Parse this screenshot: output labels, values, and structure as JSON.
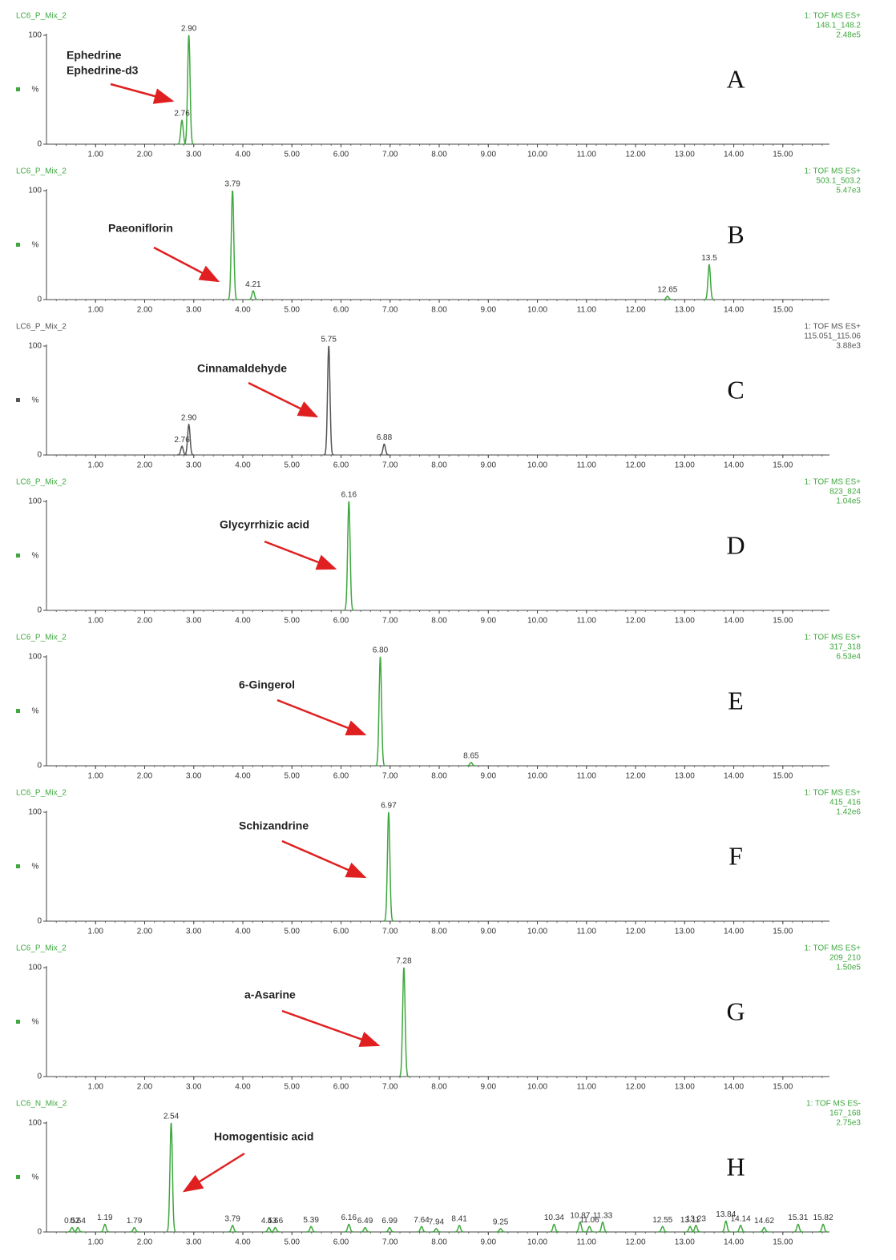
{
  "chart_data": [
    {
      "type": "chromatogram",
      "panel": "A",
      "title": "LC6_P_Mix_2",
      "header": [
        "1: TOF MS ES+",
        "148.1_148.2",
        "2.48e5"
      ],
      "annotation": [
        "Ephedrine",
        "Ephedrine-d3"
      ],
      "color": "#3fa83f",
      "peaks": {
        "x": [
          2.9,
          2.76
        ],
        "x_labels": [
          "2.90",
          "2.76"
        ],
        "values": [
          100,
          22
        ]
      },
      "xlim": [
        0,
        15.95
      ],
      "ylim": [
        0,
        100
      ],
      "yticks": [
        0,
        100
      ],
      "ylabel": "%",
      "xticks": [
        {
          "value": 1,
          "label": "1.00"
        },
        {
          "value": 2,
          "label": "2.00"
        },
        {
          "value": 3,
          "label": "3.00"
        },
        {
          "value": 4,
          "label": "4.00"
        },
        {
          "value": 5,
          "label": "5.00"
        },
        {
          "value": 6,
          "label": "6.00"
        },
        {
          "value": 7,
          "label": "7.00"
        },
        {
          "value": 8,
          "label": "8.00"
        },
        {
          "value": 9,
          "label": "9.00"
        },
        {
          "value": 10,
          "label": "10.00"
        },
        {
          "value": 11,
          "label": "11.00"
        },
        {
          "value": 12,
          "label": "12.00"
        },
        {
          "value": 13,
          "label": "13.00"
        },
        {
          "value": 14,
          "label": "14.00"
        },
        {
          "value": 15,
          "label": "15.00"
        }
      ]
    },
    {
      "type": "chromatogram",
      "panel": "B",
      "title": "LC6_P_Mix_2",
      "header": [
        "1: TOF MS ES+",
        "503.1_503.2",
        "5.47e3"
      ],
      "annotation": [
        "Paeoniflorin"
      ],
      "color": "#3fa83f",
      "peaks": {
        "x": [
          3.79,
          4.21,
          12.65,
          13.5
        ],
        "x_labels": [
          "3.79",
          "4.21",
          "12.65",
          "13.5"
        ],
        "values": [
          100,
          8,
          3,
          32
        ]
      },
      "xlim": [
        0,
        15.95
      ],
      "ylim": [
        0,
        100
      ],
      "yticks": [
        0,
        100
      ],
      "ylabel": "%",
      "xticks": [
        {
          "value": 1,
          "label": "1.00"
        },
        {
          "value": 2,
          "label": "2.00"
        },
        {
          "value": 3,
          "label": "3.00"
        },
        {
          "value": 4,
          "label": "4.00"
        },
        {
          "value": 5,
          "label": "5.00"
        },
        {
          "value": 6,
          "label": "6.00"
        },
        {
          "value": 7,
          "label": "7.00"
        },
        {
          "value": 8,
          "label": "8.00"
        },
        {
          "value": 9,
          "label": "9.00"
        },
        {
          "value": 10,
          "label": "10.00"
        },
        {
          "value": 11,
          "label": "11.00"
        },
        {
          "value": 12,
          "label": "12.00"
        },
        {
          "value": 13,
          "label": "13.00"
        },
        {
          "value": 14,
          "label": "14.00"
        },
        {
          "value": 15,
          "label": "15.00"
        }
      ]
    },
    {
      "type": "chromatogram",
      "panel": "C",
      "title": "LC6_P_Mix_2",
      "header": [
        "1: TOF MS ES+",
        "115.051_115.06",
        "3.88e3"
      ],
      "annotation": [
        "Cinnamaldehyde"
      ],
      "color": "#555555",
      "peaks": {
        "x": [
          2.76,
          2.9,
          5.75,
          6.88
        ],
        "x_labels": [
          "2.76",
          "2.90",
          "5.75",
          "6.88"
        ],
        "values": [
          8,
          28,
          100,
          10
        ]
      },
      "xlim": [
        0,
        15.95
      ],
      "ylim": [
        0,
        100
      ],
      "yticks": [
        0,
        100
      ],
      "ylabel": "%",
      "xticks": [
        {
          "value": 1,
          "label": "1.00"
        },
        {
          "value": 2,
          "label": "2.00"
        },
        {
          "value": 3,
          "label": "3.00"
        },
        {
          "value": 4,
          "label": "4.00"
        },
        {
          "value": 5,
          "label": "5.00"
        },
        {
          "value": 6,
          "label": "6.00"
        },
        {
          "value": 7,
          "label": "7.00"
        },
        {
          "value": 8,
          "label": "8.00"
        },
        {
          "value": 9,
          "label": "9.00"
        },
        {
          "value": 10,
          "label": "10.00"
        },
        {
          "value": 11,
          "label": "11.00"
        },
        {
          "value": 12,
          "label": "12.00"
        },
        {
          "value": 13,
          "label": "13.00"
        },
        {
          "value": 14,
          "label": "14.00"
        },
        {
          "value": 15,
          "label": "15.00"
        }
      ]
    },
    {
      "type": "chromatogram",
      "panel": "D",
      "title": "LC6_P_Mix_2",
      "header": [
        "1: TOF MS ES+",
        "823_824",
        "1.04e5"
      ],
      "annotation": [
        "Glycyrrhizic acid"
      ],
      "color": "#3fa83f",
      "peaks": {
        "x": [
          6.16
        ],
        "x_labels": [
          "6.16"
        ],
        "values": [
          100
        ]
      },
      "xlim": [
        0,
        15.95
      ],
      "ylim": [
        0,
        100
      ],
      "yticks": [
        0,
        100
      ],
      "ylabel": "%",
      "xticks": [
        {
          "value": 1,
          "label": "1.00"
        },
        {
          "value": 2,
          "label": "2.00"
        },
        {
          "value": 3,
          "label": "3.00"
        },
        {
          "value": 4,
          "label": "4.00"
        },
        {
          "value": 5,
          "label": "5.00"
        },
        {
          "value": 6,
          "label": "6.00"
        },
        {
          "value": 7,
          "label": "7.00"
        },
        {
          "value": 8,
          "label": "8.00"
        },
        {
          "value": 9,
          "label": "9.00"
        },
        {
          "value": 10,
          "label": "10.00"
        },
        {
          "value": 11,
          "label": "11.00"
        },
        {
          "value": 12,
          "label": "12.00"
        },
        {
          "value": 13,
          "label": "13.00"
        },
        {
          "value": 14,
          "label": "14.00"
        },
        {
          "value": 15,
          "label": "15.00"
        }
      ]
    },
    {
      "type": "chromatogram",
      "panel": "E",
      "title": "LC6_P_Mix_2",
      "header": [
        "1: TOF MS ES+",
        "317_318",
        "6.53e4"
      ],
      "annotation": [
        "6-Gingerol"
      ],
      "color": "#3fa83f",
      "peaks": {
        "x": [
          6.8,
          8.65
        ],
        "x_labels": [
          "6.80",
          "8.65"
        ],
        "values": [
          100,
          3
        ]
      },
      "xlim": [
        0,
        15.95
      ],
      "ylim": [
        0,
        100
      ],
      "yticks": [
        0,
        100
      ],
      "ylabel": "%",
      "xticks": [
        {
          "value": 1,
          "label": "1.00"
        },
        {
          "value": 2,
          "label": "2.00"
        },
        {
          "value": 3,
          "label": "3.00"
        },
        {
          "value": 4,
          "label": "4.00"
        },
        {
          "value": 5,
          "label": "5.00"
        },
        {
          "value": 6,
          "label": "6.00"
        },
        {
          "value": 7,
          "label": "7.00"
        },
        {
          "value": 8,
          "label": "8.00"
        },
        {
          "value": 9,
          "label": "9.00"
        },
        {
          "value": 10,
          "label": "10.00"
        },
        {
          "value": 11,
          "label": "11.00"
        },
        {
          "value": 12,
          "label": "12.00"
        },
        {
          "value": 13,
          "label": "13.00"
        },
        {
          "value": 14,
          "label": "14.00"
        },
        {
          "value": 15,
          "label": "15.00"
        }
      ]
    },
    {
      "type": "chromatogram",
      "panel": "F",
      "title": "LC6_P_Mix_2",
      "header": [
        "1: TOF MS ES+",
        "415_416",
        "1.42e6"
      ],
      "annotation": [
        "Schizandrine"
      ],
      "color": "#3fa83f",
      "peaks": {
        "x": [
          6.97
        ],
        "x_labels": [
          "6.97"
        ],
        "values": [
          100
        ]
      },
      "xlim": [
        0,
        15.95
      ],
      "ylim": [
        0,
        100
      ],
      "yticks": [
        0,
        100
      ],
      "ylabel": "%",
      "xticks": [
        {
          "value": 1,
          "label": "1.00"
        },
        {
          "value": 2,
          "label": "2.00"
        },
        {
          "value": 3,
          "label": "3.00"
        },
        {
          "value": 4,
          "label": "4.00"
        },
        {
          "value": 5,
          "label": "5.00"
        },
        {
          "value": 6,
          "label": "6.00"
        },
        {
          "value": 7,
          "label": "7.00"
        },
        {
          "value": 8,
          "label": "8.00"
        },
        {
          "value": 9,
          "label": "9.00"
        },
        {
          "value": 10,
          "label": "10.00"
        },
        {
          "value": 11,
          "label": "11.00"
        },
        {
          "value": 12,
          "label": "12.00"
        },
        {
          "value": 13,
          "label": "13.00"
        },
        {
          "value": 14,
          "label": "14.00"
        },
        {
          "value": 15,
          "label": "15.00"
        }
      ]
    },
    {
      "type": "chromatogram",
      "panel": "G",
      "title": "LC6_P_Mix_2",
      "header": [
        "1: TOF MS ES+",
        "209_210",
        "1.50e5"
      ],
      "annotation": [
        "a-Asarine"
      ],
      "color": "#3fa83f",
      "peaks": {
        "x": [
          7.28
        ],
        "x_labels": [
          "7.28"
        ],
        "values": [
          100
        ]
      },
      "xlim": [
        0,
        15.95
      ],
      "ylim": [
        0,
        100
      ],
      "yticks": [
        0,
        100
      ],
      "ylabel": "%",
      "xticks": [
        {
          "value": 1,
          "label": "1.00"
        },
        {
          "value": 2,
          "label": "2.00"
        },
        {
          "value": 3,
          "label": "3.00"
        },
        {
          "value": 4,
          "label": "4.00"
        },
        {
          "value": 5,
          "label": "5.00"
        },
        {
          "value": 6,
          "label": "6.00"
        },
        {
          "value": 7,
          "label": "7.00"
        },
        {
          "value": 8,
          "label": "8.00"
        },
        {
          "value": 9,
          "label": "9.00"
        },
        {
          "value": 10,
          "label": "10.00"
        },
        {
          "value": 11,
          "label": "11.00"
        },
        {
          "value": 12,
          "label": "12.00"
        },
        {
          "value": 13,
          "label": "13.00"
        },
        {
          "value": 14,
          "label": "14.00"
        },
        {
          "value": 15,
          "label": "15.00"
        }
      ]
    },
    {
      "type": "chromatogram",
      "panel": "H",
      "title": "LC6_N_Mix_2",
      "header": [
        "1: TOF MS ES-",
        "167_168",
        "2.75e3"
      ],
      "annotation": [
        "Homogentisic acid"
      ],
      "color": "#3fa83f",
      "peaks": {
        "x": [
          0.52,
          0.64,
          1.19,
          1.79,
          2.54,
          3.79,
          4.53,
          4.66,
          5.39,
          6.16,
          6.49,
          6.99,
          7.64,
          7.94,
          8.41,
          9.25,
          10.34,
          10.87,
          11.06,
          11.33,
          12.55,
          13.11,
          13.23,
          13.84,
          14.14,
          14.62,
          15.31,
          15.82
        ],
        "x_labels": [
          "0.52",
          "0.64",
          "1.19",
          "1.79",
          "2.54",
          "3.79",
          "4.53",
          "4.66",
          "5.39",
          "6.16",
          "6.49",
          "6.99",
          "7.64",
          "7.94",
          "8.41",
          "9.25",
          "10.34",
          "10.87",
          "11.06",
          "11.33",
          "12.55",
          "13.11",
          "13.23",
          "13.84",
          "14.14",
          "14.62",
          "15.31",
          "15.82"
        ],
        "values": [
          4,
          4,
          7,
          4,
          100,
          6,
          4,
          4,
          5,
          7,
          4,
          4,
          5,
          3,
          6,
          3,
          7,
          9,
          5,
          9,
          5,
          5,
          6,
          10,
          6,
          4,
          7,
          7
        ]
      },
      "xlim": [
        0,
        15.95
      ],
      "ylim": [
        0,
        100
      ],
      "yticks": [
        0,
        100
      ],
      "ylabel": "%",
      "xticks": [
        {
          "value": 1,
          "label": "1.00"
        },
        {
          "value": 2,
          "label": "2.00"
        },
        {
          "value": 3,
          "label": "3.00"
        },
        {
          "value": 4,
          "label": "4.00"
        },
        {
          "value": 5,
          "label": "5.00"
        },
        {
          "value": 6,
          "label": "6.00"
        },
        {
          "value": 7,
          "label": "7.00"
        },
        {
          "value": 8,
          "label": "8.00"
        },
        {
          "value": 9,
          "label": "9.00"
        },
        {
          "value": 10,
          "label": "10.00"
        },
        {
          "value": 11,
          "label": "11.00"
        },
        {
          "value": 12,
          "label": "12.00"
        },
        {
          "value": 13,
          "label": "13.00"
        },
        {
          "value": 14,
          "label": "14.00"
        },
        {
          "value": 15,
          "label": "15.00"
        }
      ]
    }
  ]
}
